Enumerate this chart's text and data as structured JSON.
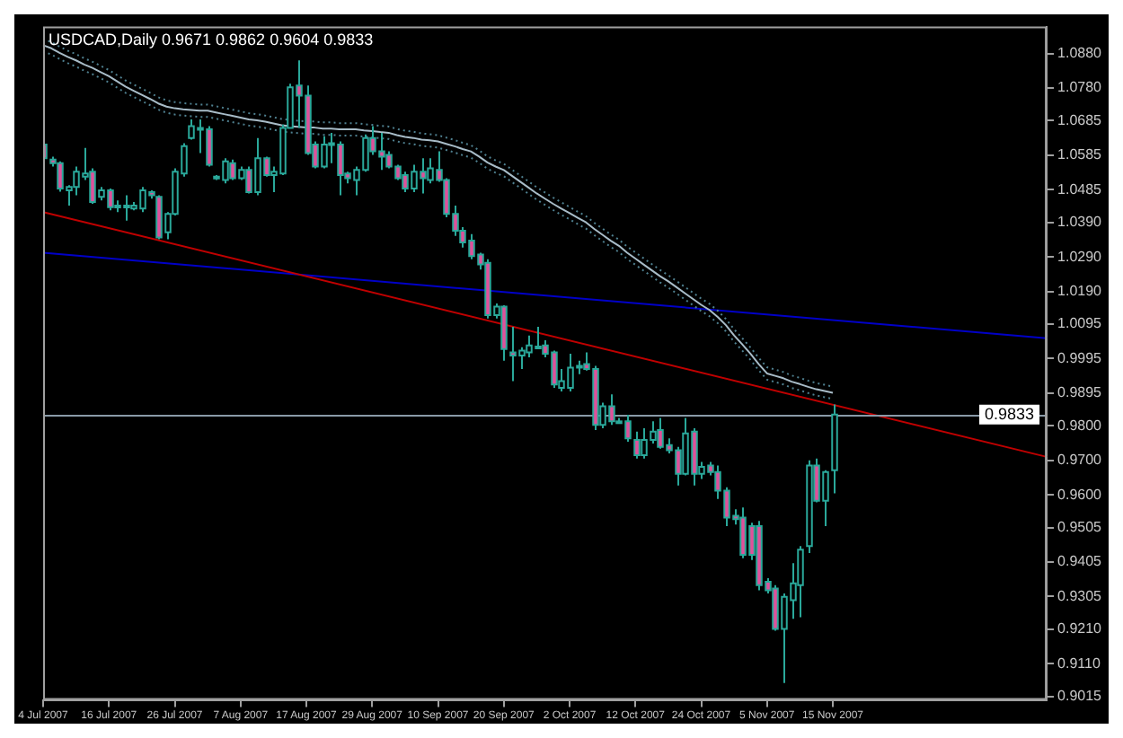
{
  "chart_data": {
    "type": "candlestick",
    "title": "USDCAD,Daily 0.9671 0.9862 0.9604 0.9833",
    "categories": [
      "4 Jul 2007",
      null,
      null,
      null,
      null,
      null,
      null,
      null,
      "16 Jul 2007",
      null,
      null,
      null,
      null,
      null,
      null,
      null,
      "26 Jul 2007",
      null,
      null,
      null,
      null,
      null,
      null,
      null,
      "7 Aug 2007",
      null,
      null,
      null,
      null,
      null,
      null,
      null,
      "17 Aug 2007",
      null,
      null,
      null,
      null,
      null,
      null,
      null,
      "29 Aug 2007",
      null,
      null,
      null,
      null,
      null,
      null,
      null,
      "10 Sep 2007",
      null,
      null,
      null,
      null,
      null,
      null,
      null,
      "20 Sep 2007",
      null,
      null,
      null,
      null,
      null,
      null,
      null,
      "2 Oct 2007",
      null,
      null,
      null,
      null,
      null,
      null,
      null,
      "12 Oct 2007",
      null,
      null,
      null,
      null,
      null,
      null,
      null,
      "24 Oct 2007",
      null,
      null,
      null,
      null,
      null,
      null,
      null,
      "5 Nov 2007",
      null,
      null,
      null,
      null,
      null,
      null,
      null,
      "15 Nov 2007",
      null,
      null,
      null,
      null,
      null,
      null,
      null,
      null,
      null,
      null,
      null,
      null,
      null,
      null,
      null,
      null,
      null,
      null,
      null,
      null,
      null,
      null,
      null,
      null,
      null,
      null
    ],
    "ohlc": [
      [
        1.0616,
        1.0635,
        1.0557,
        1.0576
      ],
      [
        1.0572,
        1.0581,
        1.0552,
        1.0562
      ],
      [
        1.0562,
        1.0567,
        1.0479,
        1.0488
      ],
      [
        1.0483,
        1.0498,
        1.0439,
        1.0493
      ],
      [
        1.0493,
        1.0552,
        1.0469,
        1.0537
      ],
      [
        1.0523,
        1.0606,
        1.0513,
        1.0532
      ],
      [
        1.0537,
        1.0547,
        1.0444,
        1.0449
      ],
      [
        1.0464,
        1.0493,
        1.0454,
        1.0483
      ],
      [
        1.0483,
        1.0488,
        1.0425,
        1.0434
      ],
      [
        1.0434,
        1.0454,
        1.042,
        1.0439
      ],
      [
        1.0437,
        1.0469,
        1.0395,
        1.0439
      ],
      [
        1.043,
        1.0449,
        1.0425,
        1.0439
      ],
      [
        1.043,
        1.0493,
        1.042,
        1.0483
      ],
      [
        1.0478,
        1.0483,
        1.0459,
        1.0469
      ],
      [
        1.0464,
        1.0469,
        1.0341,
        1.0346
      ],
      [
        1.0361,
        1.042,
        1.0341,
        1.0415
      ],
      [
        1.0415,
        1.0547,
        1.041,
        1.0537
      ],
      [
        1.0532,
        1.062,
        1.0523,
        1.0611
      ],
      [
        1.0635,
        1.0689,
        1.063,
        1.0669
      ],
      [
        1.0664,
        1.0689,
        1.0591,
        1.066
      ],
      [
        1.066,
        1.0669,
        1.0552,
        1.0557
      ],
      [
        1.0518,
        1.0527,
        1.0513,
        1.0523
      ],
      [
        1.0513,
        1.0576,
        1.0503,
        1.0567
      ],
      [
        1.0562,
        1.0572,
        1.0513,
        1.0518
      ],
      [
        1.0518,
        1.0552,
        1.0513,
        1.0542
      ],
      [
        1.0542,
        1.0552,
        1.0474,
        1.0478
      ],
      [
        1.0478,
        1.0635,
        1.0469,
        1.0576
      ],
      [
        1.0576,
        1.0581,
        1.0523,
        1.0527
      ],
      [
        1.0527,
        1.0552,
        1.0478,
        1.0537
      ],
      [
        1.0532,
        1.0674,
        1.0527,
        1.0664
      ],
      [
        1.0664,
        1.0792,
        1.0664,
        1.0782
      ],
      [
        1.0787,
        1.086,
        1.0664,
        1.0758
      ],
      [
        1.0758,
        1.0787,
        1.0586,
        1.0591
      ],
      [
        1.0616,
        1.0625,
        1.0547,
        1.0552
      ],
      [
        1.0552,
        1.064,
        1.0547,
        1.0616
      ],
      [
        1.0616,
        1.065,
        1.0562,
        1.062
      ],
      [
        1.0616,
        1.0625,
        1.0469,
        1.0527
      ],
      [
        1.0532,
        1.0537,
        1.0503,
        1.0518
      ],
      [
        1.0513,
        1.0552,
        1.0469,
        1.0542
      ],
      [
        1.0542,
        1.0645,
        1.0537,
        1.0635
      ],
      [
        1.0635,
        1.0669,
        1.0586,
        1.0596
      ],
      [
        1.0596,
        1.065,
        1.0542,
        1.0581
      ],
      [
        1.0586,
        1.0596,
        1.0547,
        1.0552
      ],
      [
        1.0552,
        1.0557,
        1.0513,
        1.0518
      ],
      [
        1.0527,
        1.0537,
        1.0478,
        1.0488
      ],
      [
        1.0488,
        1.0557,
        1.0478,
        1.0537
      ],
      [
        1.0537,
        1.0576,
        1.0474,
        1.0518
      ],
      [
        1.0513,
        1.0576,
        1.0503,
        1.0547
      ],
      [
        1.0542,
        1.0596,
        1.0508,
        1.0513
      ],
      [
        1.0513,
        1.0518,
        1.0405,
        1.0415
      ],
      [
        1.0415,
        1.0439,
        1.0351,
        1.0366
      ],
      [
        1.0366,
        1.0376,
        1.0317,
        1.0332
      ],
      [
        1.0337,
        1.0356,
        1.0283,
        1.0292
      ],
      [
        1.0297,
        1.0302,
        1.0253,
        1.0268
      ],
      [
        1.0273,
        1.0283,
        1.0111,
        1.0121
      ],
      [
        1.0121,
        1.0155,
        1.0111,
        1.0146
      ],
      [
        1.0146,
        1.015,
        0.9989,
        1.0023
      ],
      [
        1.0013,
        1.0087,
        0.993,
        1.0004
      ],
      [
        1.0004,
        1.0028,
        0.9965,
        1.0018
      ],
      [
        1.0013,
        1.0062,
        0.9999,
        1.0033
      ],
      [
        1.0028,
        1.0087,
        1.0023,
        1.003
      ],
      [
        1.0033,
        1.0048,
        0.9999,
        1.0009
      ],
      [
        1.0013,
        1.0018,
        0.991,
        0.992
      ],
      [
        0.991,
        0.9965,
        0.99,
        0.993
      ],
      [
        0.991,
        1.0009,
        0.99,
        0.9969
      ],
      [
        0.9974,
        0.9989,
        0.995,
        0.9972
      ],
      [
        0.9979,
        1.0013,
        0.996,
        0.9965
      ],
      [
        0.9965,
        0.9974,
        0.9788,
        0.9803
      ],
      [
        0.9803,
        0.9867,
        0.9793,
        0.9857
      ],
      [
        0.9857,
        0.9891,
        0.9803,
        0.9813
      ],
      [
        0.9813,
        0.9823,
        0.9808,
        0.9812
      ],
      [
        0.9813,
        0.9832,
        0.9754,
        0.9764
      ],
      [
        0.9759,
        0.9783,
        0.9705,
        0.9715
      ],
      [
        0.9715,
        0.9793,
        0.9705,
        0.9759
      ],
      [
        0.9759,
        0.9813,
        0.9749,
        0.9783
      ],
      [
        0.9788,
        0.9823,
        0.9734,
        0.9739
      ],
      [
        0.9744,
        0.9764,
        0.972,
        0.9729
      ],
      [
        0.9729,
        0.9739,
        0.9627,
        0.9661
      ],
      [
        0.9661,
        0.9823,
        0.9656,
        0.9778
      ],
      [
        0.9783,
        0.9793,
        0.9627,
        0.9661
      ],
      [
        0.9661,
        0.9695,
        0.9646,
        0.9681
      ],
      [
        0.9685,
        0.9695,
        0.9656,
        0.9666
      ],
      [
        0.9666,
        0.9685,
        0.9588,
        0.9612
      ],
      [
        0.9612,
        0.9622,
        0.9509,
        0.9534
      ],
      [
        0.9539,
        0.9558,
        0.9514,
        0.9529
      ],
      [
        0.9534,
        0.9563,
        0.9416,
        0.9426
      ],
      [
        0.9509,
        0.9519,
        0.9411,
        0.9426
      ],
      [
        0.9509,
        0.9524,
        0.9323,
        0.9338
      ],
      [
        0.9348,
        0.9358,
        0.9314,
        0.9323
      ],
      [
        0.9328,
        0.9338,
        0.9206,
        0.9211
      ],
      [
        0.9211,
        0.9314,
        0.9054,
        0.9304
      ],
      [
        0.9294,
        0.9402,
        0.924,
        0.9343
      ],
      [
        0.9338,
        0.9451,
        0.9245,
        0.9441
      ],
      [
        0.9451,
        0.97,
        0.9431,
        0.9685
      ],
      [
        0.9685,
        0.9705,
        0.9578,
        0.9583
      ],
      [
        0.9583,
        0.9671,
        0.9509,
        0.9666
      ],
      [
        0.9671,
        0.9862,
        0.9604,
        0.9833
      ],
      null,
      null,
      null,
      null,
      null,
      null,
      null,
      null,
      null,
      null,
      null,
      null,
      null,
      null,
      null,
      null,
      null,
      null,
      null,
      null,
      null,
      null,
      null,
      null,
      null,
      null
    ],
    "series": [
      {
        "type": "line",
        "color": "#a8bcc8",
        "values": [
          1.0904,
          1.0895,
          1.0882,
          1.087,
          1.086,
          1.0848,
          1.0838,
          1.0826,
          1.0814,
          1.0799,
          1.0784,
          1.0772,
          1.076,
          1.0748,
          1.0735,
          1.0726,
          1.0721,
          1.0718,
          1.0716,
          1.0714,
          1.0714,
          1.0709,
          1.0704,
          1.0699,
          1.0694,
          1.0689,
          1.0686,
          1.0682,
          1.0677,
          1.0672,
          1.0669,
          1.0667,
          1.0665,
          1.0665,
          1.0662,
          1.0662,
          1.066,
          1.066,
          1.066,
          1.0657,
          1.0655,
          1.0652,
          1.065,
          1.0643,
          1.0638,
          1.0635,
          1.063,
          1.0628,
          1.0625,
          1.0618,
          1.0611,
          1.0603,
          1.0596,
          1.0581,
          1.0564,
          1.0552,
          1.0542,
          1.0525,
          1.0508,
          1.0491,
          1.0474,
          1.0459,
          1.0444,
          1.043,
          1.0417,
          1.0403,
          1.039,
          1.0371,
          1.0354,
          1.0337,
          1.0322,
          1.0302,
          1.0285,
          1.0268,
          1.0251,
          1.0234,
          1.0219,
          1.0202,
          1.0185,
          1.0168,
          1.0151,
          1.0136,
          1.0116,
          1.0092,
          1.0062,
          1.0036,
          1.0009,
          0.9979,
          0.9952,
          0.9945,
          0.9938,
          0.9928,
          0.9921,
          0.9913,
          0.9906,
          0.9901,
          0.9896,
          null,
          null,
          null,
          null,
          null,
          null,
          null,
          null,
          null,
          null,
          null,
          null,
          null,
          null,
          null,
          null,
          null,
          null,
          null,
          null,
          null,
          null,
          null,
          null,
          null,
          null
        ]
      },
      {
        "type": "line",
        "color": "#4f8090",
        "line_style": "dotted",
        "values": [
          1.0922,
          1.0913,
          1.09,
          1.0888,
          1.0878,
          1.0866,
          1.0856,
          1.0844,
          1.0832,
          1.0817,
          1.0802,
          1.079,
          1.0778,
          1.0766,
          1.0753,
          1.0744,
          1.0739,
          1.0736,
          1.0734,
          1.0732,
          1.0732,
          1.0727,
          1.0722,
          1.0717,
          1.0712,
          1.0707,
          1.0704,
          1.07,
          1.0695,
          1.069,
          1.0687,
          1.0685,
          1.0683,
          1.0683,
          1.068,
          1.068,
          1.0678,
          1.0678,
          1.0678,
          1.0675,
          1.0673,
          1.067,
          1.0668,
          1.0661,
          1.0656,
          1.0653,
          1.0648,
          1.0646,
          1.0643,
          1.0636,
          1.0629,
          1.0621,
          1.0614,
          1.0599,
          1.0582,
          1.057,
          1.056,
          1.0543,
          1.0526,
          1.0509,
          1.0492,
          1.0477,
          1.0462,
          1.0448,
          1.0435,
          1.0421,
          1.0408,
          1.0389,
          1.0372,
          1.0355,
          1.034,
          1.032,
          1.0303,
          1.0286,
          1.0269,
          1.0252,
          1.0237,
          1.022,
          1.0203,
          1.0186,
          1.0169,
          1.0154,
          1.0134,
          1.011,
          1.008,
          1.0054,
          1.0027,
          0.9997,
          0.997,
          0.9963,
          0.9956,
          0.9946,
          0.9939,
          0.9931,
          0.9924,
          0.9919,
          0.9914,
          null,
          null,
          null,
          null,
          null,
          null,
          null,
          null,
          null,
          null,
          null,
          null,
          null,
          null,
          null,
          null,
          null,
          null,
          null,
          null,
          null,
          null,
          null,
          null,
          null,
          null
        ]
      },
      {
        "type": "line",
        "color": "#4f8090",
        "line_style": "dotted",
        "values": [
          1.0886,
          1.0877,
          1.0864,
          1.0852,
          1.0842,
          1.083,
          1.082,
          1.0808,
          1.0796,
          1.0781,
          1.0766,
          1.0754,
          1.0742,
          1.073,
          1.0717,
          1.0708,
          1.0703,
          1.07,
          1.0698,
          1.0696,
          1.0696,
          1.0691,
          1.0686,
          1.0681,
          1.0676,
          1.0671,
          1.0668,
          1.0664,
          1.0659,
          1.0654,
          1.0651,
          1.0649,
          1.0647,
          1.0647,
          1.0644,
          1.0644,
          1.0642,
          1.0642,
          1.0642,
          1.0639,
          1.0637,
          1.0634,
          1.0632,
          1.0625,
          1.062,
          1.0617,
          1.0612,
          1.061,
          1.0607,
          1.06,
          1.0593,
          1.0585,
          1.0578,
          1.0563,
          1.0546,
          1.0534,
          1.0524,
          1.0507,
          1.049,
          1.0473,
          1.0456,
          1.0441,
          1.0426,
          1.0412,
          1.0399,
          1.0385,
          1.0372,
          1.0353,
          1.0336,
          1.0319,
          1.0304,
          1.0284,
          1.0267,
          1.025,
          1.0233,
          1.0216,
          1.0201,
          1.0184,
          1.0167,
          1.015,
          1.0133,
          1.0118,
          1.0098,
          1.0074,
          1.0044,
          1.0018,
          0.9991,
          0.9961,
          0.9934,
          0.9927,
          0.992,
          0.991,
          0.9903,
          0.9895,
          0.9888,
          0.9883,
          0.9878,
          null,
          null,
          null,
          null,
          null,
          null,
          null,
          null,
          null,
          null,
          null,
          null,
          null,
          null,
          null,
          null,
          null,
          null,
          null,
          null,
          null,
          null,
          null,
          null,
          null,
          null
        ]
      },
      {
        "type": "line",
        "color": "#c00000",
        "values": [
          1.042,
          null,
          null,
          null,
          null,
          null,
          null,
          null,
          null,
          null,
          null,
          null,
          null,
          null,
          null,
          null,
          null,
          null,
          null,
          null,
          null,
          null,
          null,
          null,
          null,
          null,
          null,
          null,
          null,
          null,
          null,
          null,
          null,
          null,
          null,
          null,
          null,
          null,
          null,
          null,
          null,
          null,
          null,
          null,
          null,
          null,
          null,
          null,
          null,
          null,
          null,
          null,
          null,
          null,
          null,
          null,
          null,
          null,
          null,
          null,
          null,
          null,
          null,
          null,
          null,
          null,
          null,
          null,
          null,
          null,
          null,
          null,
          null,
          null,
          null,
          null,
          null,
          null,
          null,
          null,
          null,
          null,
          null,
          null,
          null,
          null,
          null,
          null,
          null,
          null,
          null,
          null,
          null,
          null,
          null,
          null,
          null,
          null,
          null,
          null,
          null,
          null,
          null,
          null,
          null,
          null,
          null,
          null,
          null,
          null,
          null,
          null,
          null,
          null,
          null,
          null,
          null,
          null,
          null,
          null,
          null,
          null,
          0.971
        ]
      },
      {
        "type": "line",
        "color": "#0000c8",
        "values": [
          1.0302,
          null,
          null,
          null,
          null,
          null,
          null,
          null,
          null,
          null,
          null,
          null,
          null,
          null,
          null,
          null,
          null,
          null,
          null,
          null,
          null,
          null,
          null,
          null,
          null,
          null,
          null,
          null,
          null,
          null,
          null,
          null,
          null,
          null,
          null,
          null,
          null,
          null,
          null,
          null,
          null,
          null,
          null,
          null,
          null,
          null,
          null,
          null,
          null,
          null,
          null,
          null,
          null,
          null,
          null,
          null,
          null,
          null,
          null,
          null,
          null,
          null,
          null,
          null,
          null,
          null,
          null,
          null,
          null,
          null,
          null,
          null,
          null,
          null,
          null,
          null,
          null,
          null,
          null,
          null,
          null,
          null,
          null,
          null,
          null,
          null,
          null,
          null,
          null,
          null,
          null,
          null,
          null,
          null,
          null,
          null,
          null,
          null,
          null,
          null,
          null,
          null,
          null,
          null,
          null,
          null,
          null,
          null,
          null,
          null,
          null,
          null,
          null,
          null,
          null,
          null,
          null,
          null,
          null,
          null,
          null,
          null,
          1.0054
        ]
      }
    ],
    "ref_lines": [
      {
        "axis": "y",
        "value": 0.9833,
        "label": "0.9833",
        "color": "#8a9aa8"
      }
    ],
    "ylim": [
      0.9005,
      1.0958
    ],
    "yticks": [
      {
        "value": 1.088,
        "label": "1.0880"
      },
      {
        "value": 1.078,
        "label": "1.0780"
      },
      {
        "value": 1.0685,
        "label": "1.0685"
      },
      {
        "value": 1.0585,
        "label": "1.0585"
      },
      {
        "value": 1.0485,
        "label": "1.0485"
      },
      {
        "value": 1.039,
        "label": "1.0390"
      },
      {
        "value": 1.029,
        "label": "1.0290"
      },
      {
        "value": 1.019,
        "label": "1.0190"
      },
      {
        "value": 1.0095,
        "label": "1.0095"
      },
      {
        "value": 0.9995,
        "label": "0.9995"
      },
      {
        "value": 0.9895,
        "label": "0.9895"
      },
      {
        "value": 0.98,
        "label": "0.9800"
      },
      {
        "value": 0.97,
        "label": "0.9700"
      },
      {
        "value": 0.96,
        "label": "0.9600"
      },
      {
        "value": 0.9505,
        "label": "0.9505"
      },
      {
        "value": 0.9405,
        "label": "0.9405"
      },
      {
        "value": 0.9305,
        "label": "0.9305"
      },
      {
        "value": 0.921,
        "label": "0.9210"
      },
      {
        "value": 0.911,
        "label": "0.9110"
      },
      {
        "value": 0.9015,
        "label": "0.9015"
      }
    ],
    "grid": false,
    "legend": false
  }
}
